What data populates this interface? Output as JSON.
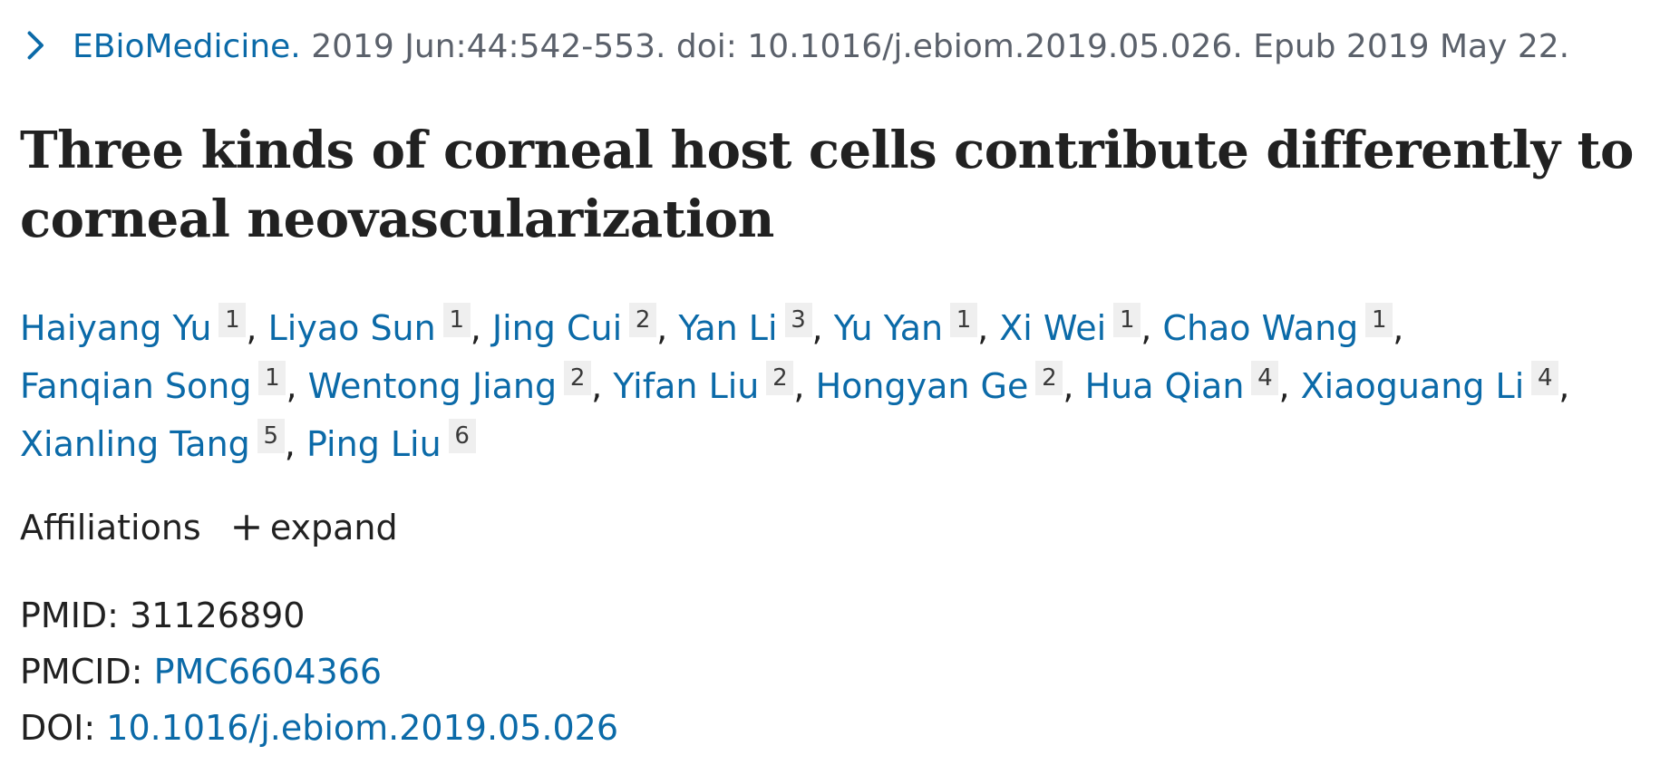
{
  "citation": {
    "journal": "EBioMedicine.",
    "details": " 2019 Jun:44:542-553. doi: 10.1016/j.ebiom.2019.05.026. Epub 2019 May 22.",
    "icon": "chevron-right-icon"
  },
  "title": "Three kinds of corneal host cells contribute differently to corneal neovascularization",
  "authors": [
    {
      "name": "Haiyang Yu",
      "aff": "1"
    },
    {
      "name": "Liyao Sun",
      "aff": "1"
    },
    {
      "name": "Jing Cui",
      "aff": "2"
    },
    {
      "name": "Yan Li",
      "aff": "3"
    },
    {
      "name": "Yu Yan",
      "aff": "1"
    },
    {
      "name": "Xi Wei",
      "aff": "1"
    },
    {
      "name": "Chao Wang",
      "aff": "1"
    },
    {
      "name": "Fanqian Song",
      "aff": "1"
    },
    {
      "name": "Wentong Jiang",
      "aff": "2"
    },
    {
      "name": "Yifan Liu",
      "aff": "2"
    },
    {
      "name": "Hongyan Ge",
      "aff": "2"
    },
    {
      "name": "Hua Qian",
      "aff": "4"
    },
    {
      "name": "Xiaoguang Li",
      "aff": "4"
    },
    {
      "name": "Xianling Tang",
      "aff": "5"
    },
    {
      "name": "Ping Liu",
      "aff": "6"
    }
  ],
  "affiliations": {
    "label": "Affiliations",
    "toggle_label": "expand",
    "toggle_icon": "plus-icon"
  },
  "identifiers": {
    "pmid_label": "PMID: ",
    "pmid_value": "31126890",
    "pmcid_label": "PMCID: ",
    "pmcid_value": "PMC6604366",
    "doi_label": "DOI: ",
    "doi_value": "10.1016/j.ebiom.2019.05.026"
  },
  "colors": {
    "link": "#0b6aa8",
    "text": "#212121",
    "muted": "#5b616b",
    "badge_bg": "#efefef"
  }
}
